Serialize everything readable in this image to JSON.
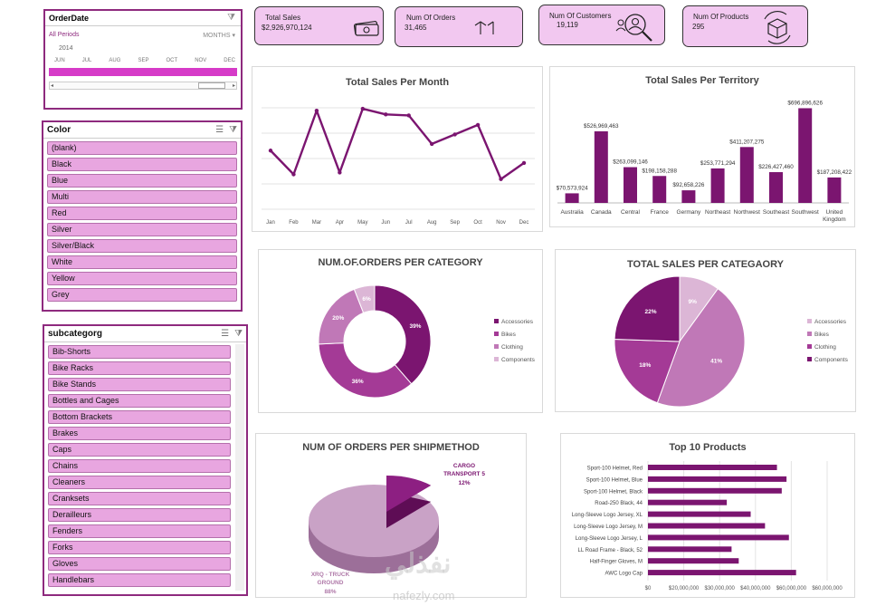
{
  "slicers": {
    "orderdate": {
      "title": "OrderDate",
      "filter": "All Periods",
      "level": "MONTHS",
      "year": "2014",
      "months": [
        "JUN",
        "JUL",
        "AUG",
        "SEP",
        "OCT",
        "NOV",
        "DEC"
      ]
    },
    "color": {
      "title": "Color",
      "items": [
        "(blank)",
        "Black",
        "Blue",
        "Multi",
        "Red",
        "Silver",
        "Silver/Black",
        "White",
        "Yellow",
        "Grey"
      ]
    },
    "subcategory": {
      "title": "subcategorg",
      "items": [
        "Bib-Shorts",
        "Bike Racks",
        "Bike Stands",
        "Bottles and Cages",
        "Bottom Brackets",
        "Brakes",
        "Caps",
        "Chains",
        "Cleaners",
        "Cranksets",
        "Derailleurs",
        "Fenders",
        "Forks",
        "Gloves",
        "Handlebars"
      ]
    }
  },
  "kpis": {
    "total_sales": {
      "label": "Total Sales",
      "value": "$2,926,970,124",
      "icon": "money-icon"
    },
    "num_orders": {
      "label": "Num Of Orders",
      "value": "31,465",
      "icon": "arrows-icon"
    },
    "num_customers": {
      "label": "Num Of Customers",
      "value": "19,119",
      "icon": "customer-search-icon"
    },
    "num_products": {
      "label": "Num Of Products",
      "value": "295",
      "icon": "box-cycle-icon"
    }
  },
  "colors": {
    "accent": "#8e2a7e",
    "dark": "#7b1570",
    "mid": "#a43a96",
    "light": "#c078b7",
    "pale": "#dcb6d6",
    "card": "#f2c8f0",
    "slicer_item": "#e8a6e0"
  },
  "watermark": {
    "arabic": "نفذلي",
    "latin": "nafezly.com"
  },
  "chart_data": [
    {
      "type": "line",
      "title": "Total Sales Per Month",
      "categories": [
        "Jan",
        "Feb",
        "Mar",
        "Apr",
        "May",
        "Jun",
        "Jul",
        "Aug",
        "Sep",
        "Oct",
        "Nov",
        "Dec"
      ],
      "values": [
        0.55,
        0.3,
        0.97,
        0.32,
        0.99,
        0.93,
        0.92,
        0.62,
        0.72,
        0.82,
        0.25,
        0.42
      ],
      "grid": true
    },
    {
      "type": "bar",
      "title": "Total Sales Per Territory",
      "categories": [
        "Australia",
        "Canada",
        "Central",
        "France",
        "Germany",
        "Northeast",
        "Northwest",
        "Southeast",
        "Southwest",
        "United Kingdom"
      ],
      "values": [
        70573924,
        526969463,
        263099146,
        198158288,
        92658226,
        253771294,
        411207275,
        226427460,
        696896626,
        187208422
      ],
      "labels": [
        "$70,573,924",
        "$526,969,463",
        "$263,099,146",
        "$198,158,288",
        "$92,658,226",
        "$253,771,294",
        "$411,207,275",
        "$226,427,460",
        "$696,896,626",
        "$187,208,422"
      ]
    },
    {
      "type": "pie",
      "variant": "donut",
      "title": "NUM.OF.ORDERS PER CATEGORY",
      "categories": [
        "Accessories",
        "Bikes",
        "Clothing",
        "Components"
      ],
      "values": [
        39,
        36,
        20,
        6
      ],
      "labels": [
        "39%",
        "36%",
        "20%",
        "6%"
      ],
      "legend": "right"
    },
    {
      "type": "pie",
      "title": "TOTAL SALES PER CATEGAORY",
      "categories": [
        "Accessories",
        "Bikes",
        "Clothing",
        "Components"
      ],
      "values": [
        9,
        41,
        18,
        22
      ],
      "labels": [
        "9%",
        "41%",
        "18%",
        "22%"
      ],
      "legend": "right"
    },
    {
      "type": "pie",
      "variant": "3d",
      "title": "NUM OF ORDERS PER SHIPMETHOD",
      "categories": [
        "CARGO TRANSPORT 5",
        "XRQ - TRUCK GROUND"
      ],
      "values": [
        12,
        88
      ],
      "labels": [
        "12%",
        "88%"
      ]
    },
    {
      "type": "bar",
      "orientation": "horizontal",
      "title": "Top 10 Products",
      "categories": [
        "Sport-100 Helmet, Red",
        "Sport-100 Helmet, Blue",
        "Sport-100 Helmet, Black",
        "Road-250 Black, 44",
        "Long-Sleeve Logo Jersey, XL",
        "Long-Sleeve Logo Jersey, M",
        "Long-Sleeve Logo Jersey, L",
        "LL Road Frame - Black, 52",
        "Half-Finger Gloves, M",
        "AWC Logo Cap"
      ],
      "values": [
        54000000,
        58000000,
        56000000,
        33000000,
        43000000,
        49000000,
        59000000,
        35000000,
        38000000,
        62000000
      ],
      "xticks": [
        "$0",
        "$20,000,000",
        "$30,000,000",
        "$40,000,000",
        "$60,000,000",
        "$60,000,000"
      ],
      "xlim": [
        0,
        75000000
      ]
    }
  ]
}
